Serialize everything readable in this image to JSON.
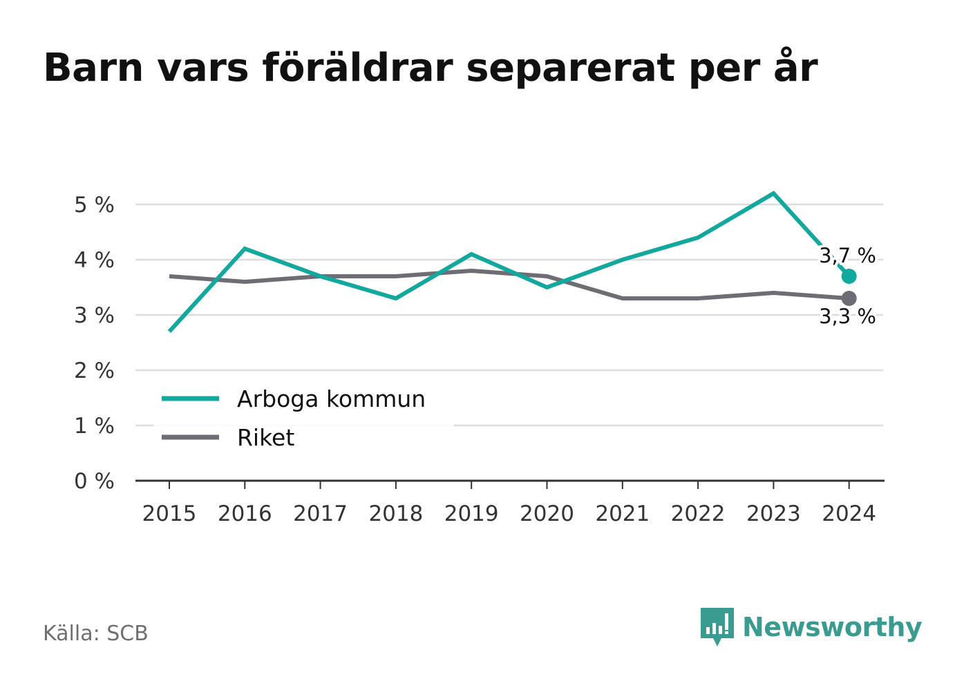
{
  "title": "Barn vars föräldrar separerat per år",
  "source": "Källa: SCB",
  "brand": {
    "name": "Newsworthy",
    "icon": "bar-chart-speech-bubble-icon",
    "color": "#3a9b90"
  },
  "chart_data": {
    "type": "line",
    "x": [
      "2015",
      "2016",
      "2017",
      "2018",
      "2019",
      "2020",
      "2021",
      "2022",
      "2023",
      "2024"
    ],
    "y_ticks": [
      "0 %",
      "1 %",
      "2 %",
      "3 %",
      "4 %",
      "5 %"
    ],
    "ylim": [
      0,
      5
    ],
    "grid": true,
    "legend_position": "bottom-left",
    "series": [
      {
        "name": "Arboga kommun",
        "color": "#13a89e",
        "values": [
          2.7,
          4.2,
          3.7,
          3.3,
          4.1,
          3.5,
          4.0,
          4.4,
          5.2,
          3.7
        ],
        "end_label": "3,7 %"
      },
      {
        "name": "Riket",
        "color": "#6e6d75",
        "values": [
          3.7,
          3.6,
          3.7,
          3.7,
          3.8,
          3.7,
          3.3,
          3.3,
          3.4,
          3.3
        ],
        "end_label": "3,3 %"
      }
    ]
  }
}
